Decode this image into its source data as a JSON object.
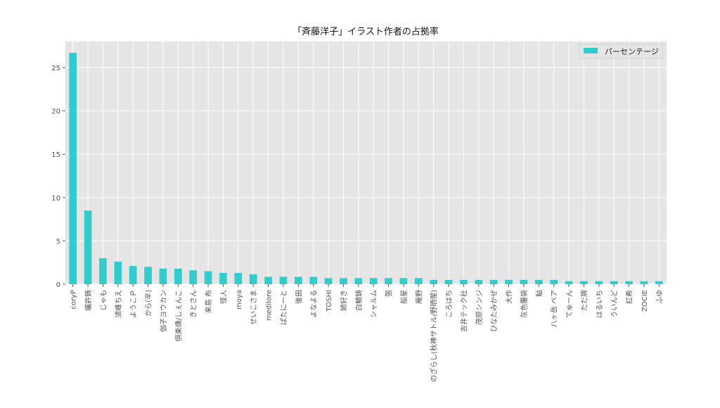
{
  "chart_data": {
    "type": "bar",
    "title": "「斉藤洋子」イラスト作者の占拠率",
    "xlabel": "",
    "ylabel": "",
    "ylim": [
      0,
      28
    ],
    "yticks": [
      0,
      5,
      10,
      15,
      20,
      25
    ],
    "ytick_labels": [
      "0",
      "5",
      "10",
      "15",
      "20",
      "25"
    ],
    "grid": true,
    "legend_position": "top-right",
    "categories": [
      "coryP",
      "蟻許鋳",
      "じゃも",
      "須峰ちえ",
      "ようこＰ",
      "から(辛)",
      "伽子ヨウカン",
      "倶楽燻/しぇんこ",
      "きとさん",
      "来島 布",
      "怪人",
      "moya",
      "せいこさま",
      "medilore",
      "ぱたにーと",
      "後田",
      "よなよる",
      "TOSHI",
      "姉好き",
      "白鯖鋳",
      "シャルム",
      "張",
      "船星",
      "庵野",
      "のざらし(秋神サトル/野晒惺)",
      "ころはち",
      "吉井テック社",
      "茂原シンジ",
      "ひなたみかぜ",
      "大作",
      "灰色覆袋",
      "鮎",
      "八ヶ岳 ベア",
      "てゅーん",
      "ただ牌",
      "はるいち",
      "ういんど",
      "紅希",
      "ZOCIE",
      "ふゆ"
    ],
    "series": [
      {
        "name": "パーセンテージ",
        "color": "#33cccc",
        "values": [
          26.7,
          8.5,
          3.0,
          2.6,
          2.1,
          2.0,
          1.8,
          1.8,
          1.6,
          1.5,
          1.3,
          1.3,
          1.15,
          0.85,
          0.85,
          0.85,
          0.85,
          0.7,
          0.7,
          0.7,
          0.7,
          0.7,
          0.7,
          0.7,
          0.5,
          0.5,
          0.5,
          0.5,
          0.5,
          0.5,
          0.5,
          0.5,
          0.5,
          0.35,
          0.35,
          0.35,
          0.35,
          0.35,
          0.35,
          0.35
        ]
      }
    ]
  }
}
